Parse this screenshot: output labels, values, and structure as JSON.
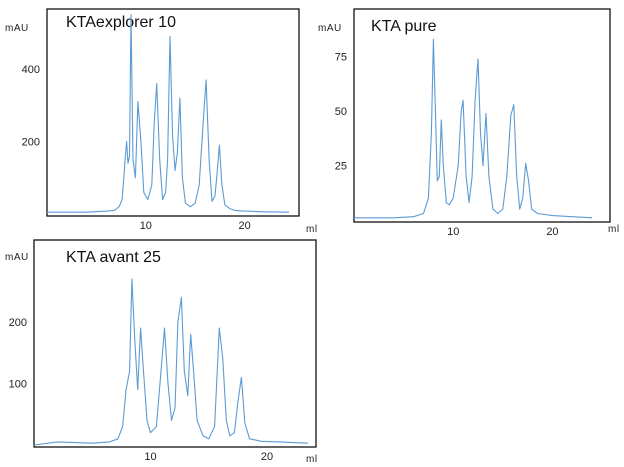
{
  "chart_data": [
    {
      "type": "line",
      "title": "KTAexplorer 10",
      "ylabel": "mAU",
      "xlabel": "ml",
      "x_ticks": [
        10,
        20
      ],
      "y_ticks": [
        200,
        400
      ],
      "xlim": [
        0,
        25.5
      ],
      "ylim": [
        0,
        560
      ],
      "line_color": "#5b9bd5",
      "x": [
        0,
        4,
        6,
        6.8,
        7.3,
        7.6,
        7.8,
        7.9,
        8.05,
        8.2,
        8.35,
        8.5,
        8.7,
        8.95,
        9.2,
        9.5,
        9.8,
        10.2,
        10.6,
        10.85,
        11.1,
        11.4,
        11.7,
        12.0,
        12.2,
        12.45,
        12.7,
        12.95,
        13.2,
        13.45,
        13.7,
        14.0,
        14.5,
        15.0,
        15.4,
        15.8,
        16.1,
        16.4,
        16.7,
        17.0,
        17.2,
        17.45,
        17.7,
        18.0,
        18.5,
        19.0,
        20.0,
        22.0,
        24.5
      ],
      "y": [
        5,
        5,
        8,
        10,
        20,
        40,
        110,
        150,
        200,
        140,
        160,
        550,
        150,
        100,
        310,
        200,
        60,
        40,
        80,
        250,
        360,
        150,
        40,
        60,
        150,
        490,
        220,
        120,
        170,
        320,
        100,
        30,
        20,
        30,
        80,
        250,
        370,
        150,
        35,
        50,
        110,
        190,
        80,
        25,
        15,
        10,
        8,
        6,
        5
      ]
    },
    {
      "type": "line",
      "title": "KTA pure",
      "ylabel": "mAU",
      "xlabel": "ml",
      "x_ticks": [
        10,
        20
      ],
      "y_ticks": [
        25,
        50,
        75
      ],
      "xlim": [
        0,
        25.8
      ],
      "ylim": [
        0,
        96
      ],
      "line_color": "#5b9bd5",
      "x": [
        0,
        4,
        6,
        7.0,
        7.5,
        7.8,
        8.0,
        8.2,
        8.4,
        8.6,
        8.8,
        9.0,
        9.3,
        9.6,
        10.0,
        10.5,
        10.8,
        11.0,
        11.3,
        11.6,
        11.9,
        12.2,
        12.5,
        12.75,
        13.0,
        13.3,
        13.6,
        14.0,
        14.5,
        15.0,
        15.4,
        15.8,
        16.1,
        16.4,
        16.7,
        17.0,
        17.3,
        17.6,
        17.9,
        18.5,
        20.0,
        22.0,
        24.0
      ],
      "y": [
        1,
        1,
        1.5,
        3,
        10,
        40,
        83,
        50,
        18,
        20,
        46,
        25,
        8,
        7,
        10,
        25,
        50,
        55,
        20,
        8,
        20,
        55,
        74,
        40,
        25,
        49,
        20,
        5,
        3,
        5,
        20,
        48,
        53,
        20,
        5,
        10,
        26,
        18,
        5,
        3,
        2,
        1.5,
        1
      ]
    },
    {
      "type": "line",
      "title": "KTA avant 25",
      "ylabel": "mAU",
      "xlabel": "ml",
      "x_ticks": [
        10,
        20
      ],
      "y_ticks": [
        100,
        200
      ],
      "xlim": [
        0,
        24.2
      ],
      "ylim": [
        0,
        330
      ],
      "line_color": "#5b9bd5",
      "x": [
        0,
        2,
        5,
        6.5,
        7.2,
        7.6,
        7.9,
        8.2,
        8.4,
        8.65,
        8.9,
        9.15,
        9.4,
        9.7,
        10.0,
        10.5,
        10.9,
        11.2,
        11.5,
        11.8,
        12.1,
        12.35,
        12.65,
        12.9,
        13.2,
        13.45,
        13.7,
        14.0,
        14.5,
        15.0,
        15.5,
        15.9,
        16.2,
        16.5,
        16.8,
        17.2,
        17.5,
        17.8,
        18.1,
        18.5,
        19.5,
        21.0,
        23.5
      ],
      "y": [
        0,
        5,
        3,
        5,
        10,
        30,
        90,
        120,
        270,
        170,
        90,
        190,
        120,
        40,
        20,
        30,
        120,
        190,
        100,
        40,
        60,
        200,
        240,
        120,
        80,
        180,
        120,
        40,
        15,
        10,
        30,
        190,
        140,
        40,
        15,
        20,
        70,
        110,
        35,
        10,
        6,
        5,
        3
      ]
    }
  ]
}
